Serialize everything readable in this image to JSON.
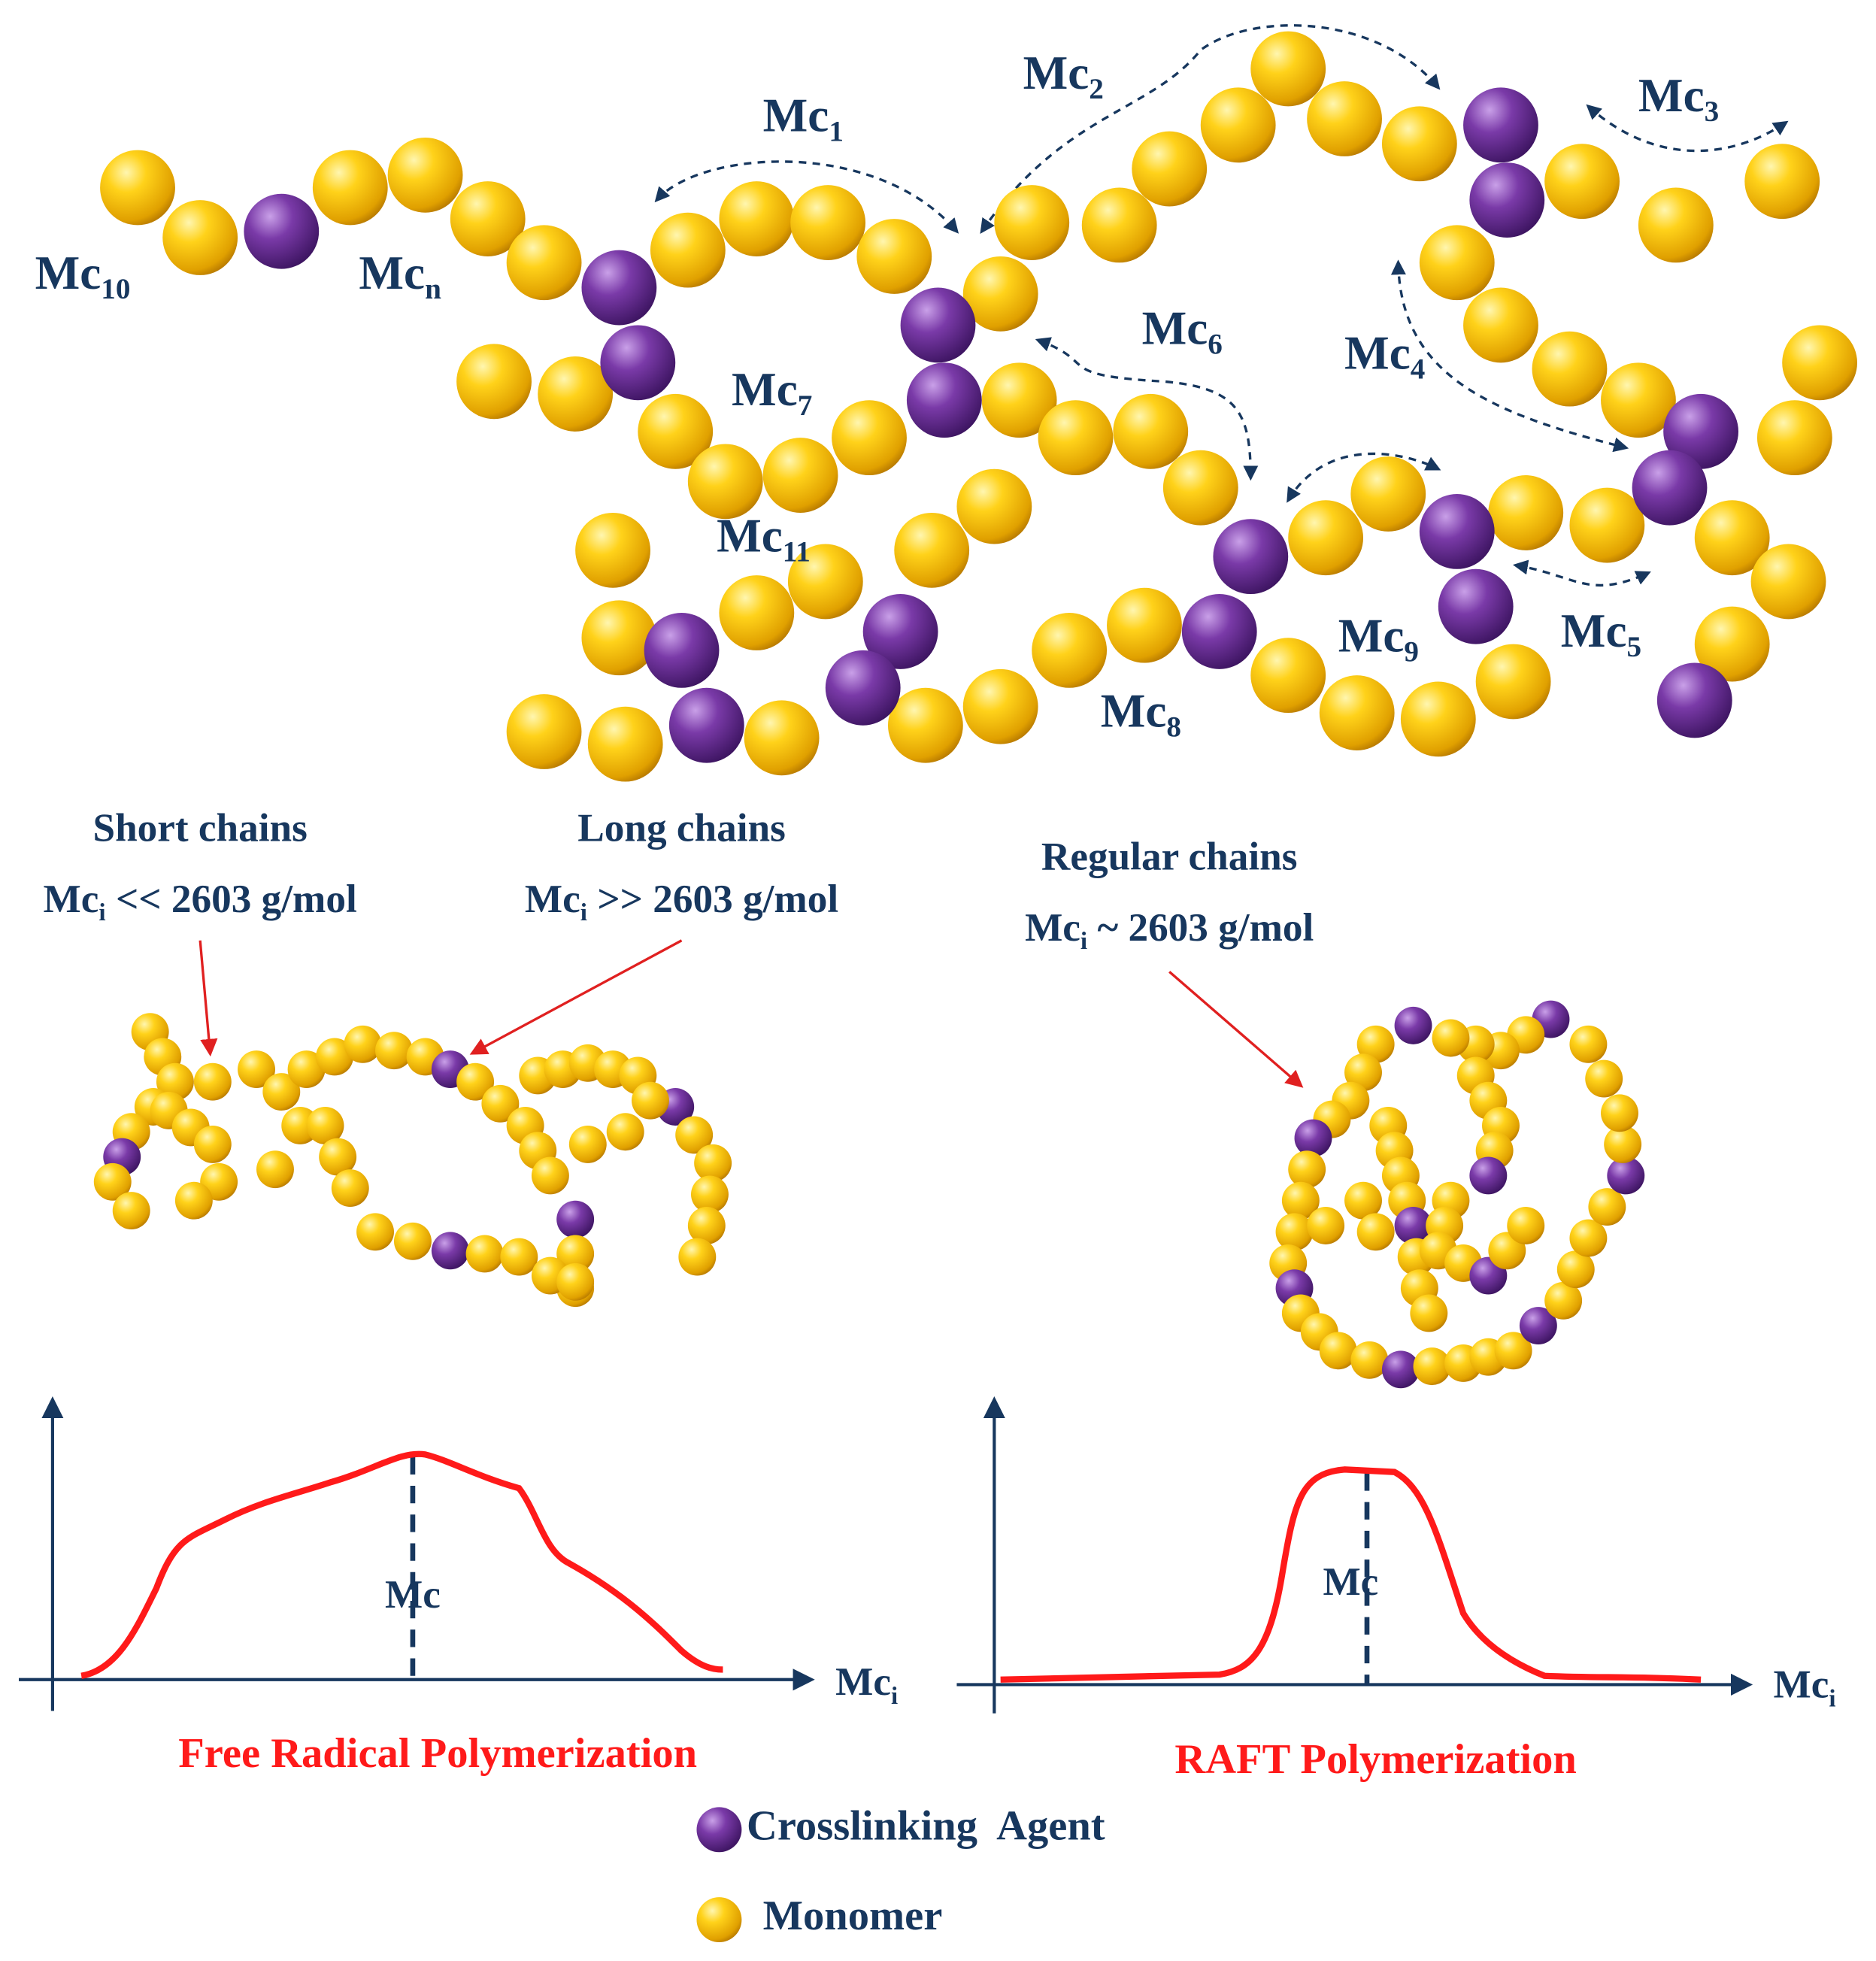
{
  "network_labels": [
    {
      "main": "Mc",
      "sub": "10"
    },
    {
      "main": "Mc",
      "sub": "n"
    },
    {
      "main": "Mc",
      "sub": "1"
    },
    {
      "main": "Mc",
      "sub": "2"
    },
    {
      "main": "Mc",
      "sub": "3"
    },
    {
      "main": "Mc",
      "sub": "4"
    },
    {
      "main": "Mc",
      "sub": "5"
    },
    {
      "main": "Mc",
      "sub": "6"
    },
    {
      "main": "Mc",
      "sub": "7"
    },
    {
      "main": "Mc",
      "sub": "8"
    },
    {
      "main": "Mc",
      "sub": "9"
    },
    {
      "main": "Mc",
      "sub": "11"
    }
  ],
  "annotations": [
    {
      "title": "Short chains",
      "pre": "Mc",
      "sub": "i",
      "post": " << 2603 g/mol"
    },
    {
      "title": "Long chains",
      "pre": "Mc",
      "sub": "i",
      "post": " >> 2603 g/mol"
    },
    {
      "title": "Regular chains",
      "pre": "Mc",
      "sub": "i",
      "post": " ~ 2603 g/mol"
    }
  ],
  "panels": [
    {
      "peak_label": "Mc",
      "x_label": {
        "main": "Mc",
        "sub": "i"
      },
      "title": "Free Radical Polymerization"
    },
    {
      "peak_label": "Mc",
      "x_label": {
        "main": "Mc",
        "sub": "i"
      },
      "title": "RAFT Polymerization"
    }
  ],
  "legend": [
    {
      "label": "Crosslinking  Agent"
    },
    {
      "label": "Monomer"
    }
  ]
}
